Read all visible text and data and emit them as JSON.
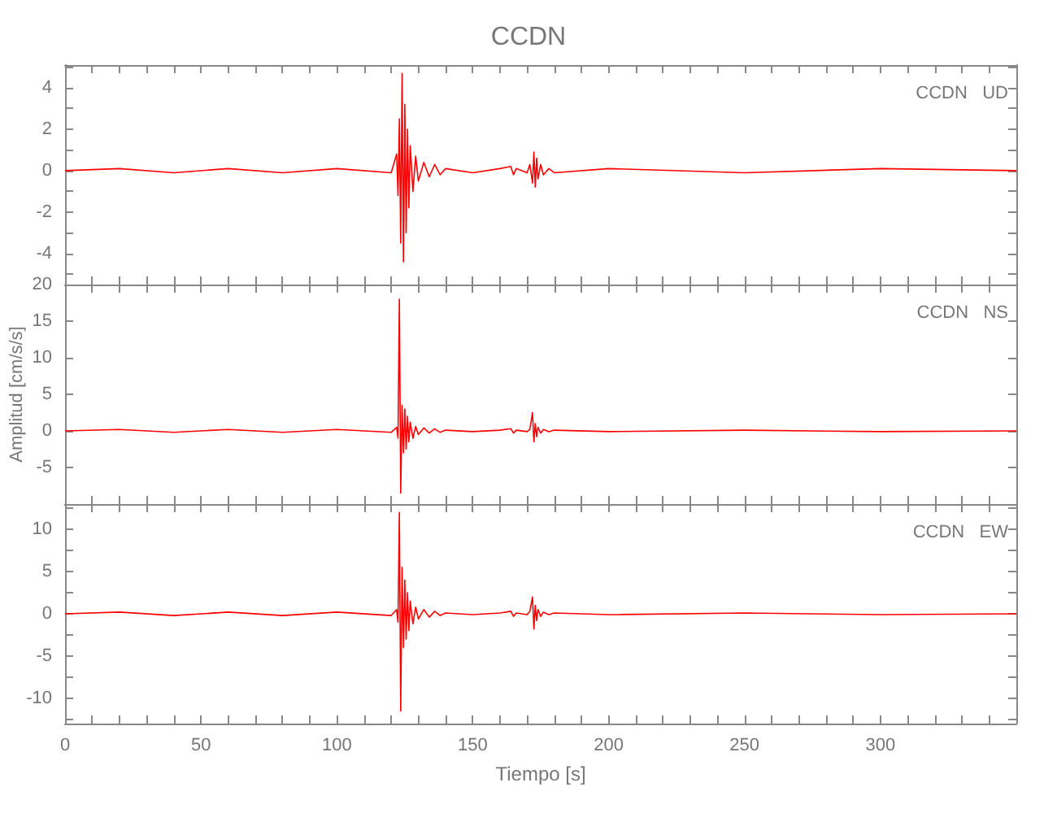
{
  "chart_data": [
    {
      "type": "line",
      "title": "CCDN",
      "annotations": [
        "CCDN   UD"
      ],
      "tick_labels": "y",
      "grid": false,
      "xlim": [
        0,
        350
      ],
      "ylim": [
        -5.5,
        5.1
      ],
      "xticks": [
        0,
        10,
        20,
        30,
        40,
        50,
        60,
        70,
        80,
        90,
        100,
        110,
        120,
        130,
        140,
        150,
        160,
        170,
        180,
        190,
        200,
        210,
        220,
        230,
        240,
        250,
        260,
        270,
        280,
        290,
        300,
        310,
        320,
        330,
        340
      ],
      "yticks": [
        {
          "value": -5,
          "label": null
        },
        -4,
        {
          "value": -3,
          "label": null
        },
        -2,
        {
          "value": -1,
          "label": null
        },
        0,
        {
          "value": 1,
          "label": null
        },
        2,
        {
          "value": 3,
          "label": null
        },
        4,
        {
          "value": 5,
          "label": null
        }
      ],
      "series": [
        {
          "color": "#ff0000",
          "x": [
            0,
            20,
            40,
            60,
            80,
            100,
            120,
            122,
            122.5,
            123,
            123.5,
            124,
            124.5,
            125,
            125.5,
            126,
            126.5,
            127,
            128,
            129,
            130,
            132,
            134,
            136,
            138,
            140,
            150,
            160,
            164,
            165,
            166,
            170,
            171,
            172,
            172.5,
            173,
            173.5,
            174,
            175,
            176,
            178,
            180,
            200,
            250,
            300,
            350
          ],
          "values": [
            0,
            0.1,
            -0.1,
            0.1,
            -0.1,
            0.1,
            -0.1,
            0.8,
            -1.2,
            2.5,
            -3.5,
            4.7,
            -4.4,
            3.2,
            -3.0,
            2.0,
            -1.8,
            1.2,
            -1.0,
            0.7,
            -0.5,
            0.4,
            -0.3,
            0.3,
            -0.2,
            0.1,
            -0.1,
            0.1,
            0.2,
            -0.2,
            0.1,
            -0.1,
            0.3,
            -0.6,
            0.9,
            -0.8,
            0.6,
            -0.4,
            0.3,
            -0.2,
            0.1,
            -0.1,
            0.1,
            -0.1,
            0.1,
            0
          ]
        }
      ]
    },
    {
      "type": "line",
      "ylabel": "Amplitud [cm/s/s]",
      "annotations": [
        "CCDN   NS"
      ],
      "tick_labels": "y",
      "grid": false,
      "xlim": [
        0,
        350
      ],
      "ylim": [
        -10,
        20
      ],
      "xticks": [
        0,
        10,
        20,
        30,
        40,
        50,
        60,
        70,
        80,
        90,
        100,
        110,
        120,
        130,
        140,
        150,
        160,
        170,
        180,
        190,
        200,
        210,
        220,
        230,
        240,
        250,
        260,
        270,
        280,
        290,
        300,
        310,
        320,
        330,
        340
      ],
      "yticks": [
        {
          "value": -10,
          "label": null
        },
        -5,
        0,
        5,
        10,
        15,
        20
      ],
      "series": [
        {
          "color": "#ff0000",
          "x": [
            0,
            20,
            40,
            60,
            80,
            100,
            120,
            122,
            122.5,
            123,
            123.5,
            124,
            124.5,
            125,
            125.5,
            126,
            126.5,
            127,
            128,
            129,
            130,
            132,
            134,
            136,
            138,
            140,
            150,
            160,
            164,
            165,
            166,
            170,
            171,
            172,
            172.5,
            173,
            173.5,
            174,
            175,
            176,
            178,
            180,
            200,
            250,
            300,
            350
          ],
          "values": [
            0,
            0.2,
            -0.2,
            0.2,
            -0.2,
            0.2,
            -0.2,
            0.5,
            -1,
            18,
            -8.5,
            3.5,
            -3,
            3,
            -2.5,
            2,
            -1.5,
            1.2,
            -1,
            0.6,
            -0.5,
            0.4,
            -0.3,
            0.3,
            -0.2,
            0.1,
            -0.1,
            0.1,
            0.3,
            -0.3,
            0.1,
            -0.1,
            0.2,
            2.5,
            -1.5,
            1,
            -0.8,
            0.5,
            -0.3,
            0.2,
            -0.1,
            0.1,
            -0.1,
            0.1,
            -0.1,
            0
          ]
        }
      ]
    },
    {
      "type": "line",
      "xlabel": "Tiempo [s]",
      "annotations": [
        "CCDN   EW"
      ],
      "grid": false,
      "xlim": [
        0,
        350
      ],
      "ylim": [
        -13,
        13
      ],
      "xticks": [
        0,
        {
          "value": 10,
          "label": null
        },
        {
          "value": 20,
          "label": null
        },
        {
          "value": 30,
          "label": null
        },
        {
          "value": 40,
          "label": null
        },
        50,
        {
          "value": 60,
          "label": null
        },
        {
          "value": 70,
          "label": null
        },
        {
          "value": 80,
          "label": null
        },
        {
          "value": 90,
          "label": null
        },
        100,
        {
          "value": 110,
          "label": null
        },
        {
          "value": 120,
          "label": null
        },
        {
          "value": 130,
          "label": null
        },
        {
          "value": 140,
          "label": null
        },
        150,
        {
          "value": 160,
          "label": null
        },
        {
          "value": 170,
          "label": null
        },
        {
          "value": 180,
          "label": null
        },
        {
          "value": 190,
          "label": null
        },
        200,
        {
          "value": 210,
          "label": null
        },
        {
          "value": 220,
          "label": null
        },
        {
          "value": 230,
          "label": null
        },
        {
          "value": 240,
          "label": null
        },
        250,
        {
          "value": 260,
          "label": null
        },
        {
          "value": 270,
          "label": null
        },
        {
          "value": 280,
          "label": null
        },
        {
          "value": 290,
          "label": null
        },
        300,
        {
          "value": 310,
          "label": null
        },
        {
          "value": 320,
          "label": null
        },
        {
          "value": 330,
          "label": null
        },
        {
          "value": 340,
          "label": null
        }
      ],
      "yticks": [
        {
          "value": -12.5,
          "label": null
        },
        -10,
        {
          "value": -7.5,
          "label": null
        },
        -5,
        {
          "value": -2.5,
          "label": null
        },
        0,
        {
          "value": 2.5,
          "label": null
        },
        5,
        {
          "value": 7.5,
          "label": null
        },
        10,
        {
          "value": 12.5,
          "label": null
        }
      ],
      "series": [
        {
          "color": "#ff0000",
          "x": [
            0,
            20,
            40,
            60,
            80,
            100,
            120,
            122,
            122.5,
            123,
            123.5,
            124,
            124.5,
            125,
            125.5,
            126,
            126.5,
            127,
            128,
            129,
            130,
            132,
            134,
            136,
            138,
            140,
            150,
            160,
            164,
            165,
            166,
            170,
            171,
            172,
            172.5,
            173,
            173.5,
            174,
            175,
            176,
            178,
            180,
            200,
            250,
            300,
            350
          ],
          "values": [
            0,
            0.2,
            -0.2,
            0.2,
            -0.2,
            0.2,
            -0.2,
            0.5,
            -1,
            12,
            -11.5,
            5.5,
            -4,
            4,
            -3,
            2.5,
            -2,
            1.5,
            -1.2,
            0.8,
            -0.6,
            0.5,
            -0.4,
            0.3,
            -0.2,
            0.1,
            -0.1,
            0.1,
            0.3,
            -0.3,
            0.1,
            -0.1,
            0.3,
            2,
            -1.8,
            1,
            -0.8,
            0.5,
            -0.3,
            0.2,
            -0.1,
            0.1,
            -0.1,
            0.1,
            -0.1,
            0
          ]
        }
      ]
    }
  ]
}
